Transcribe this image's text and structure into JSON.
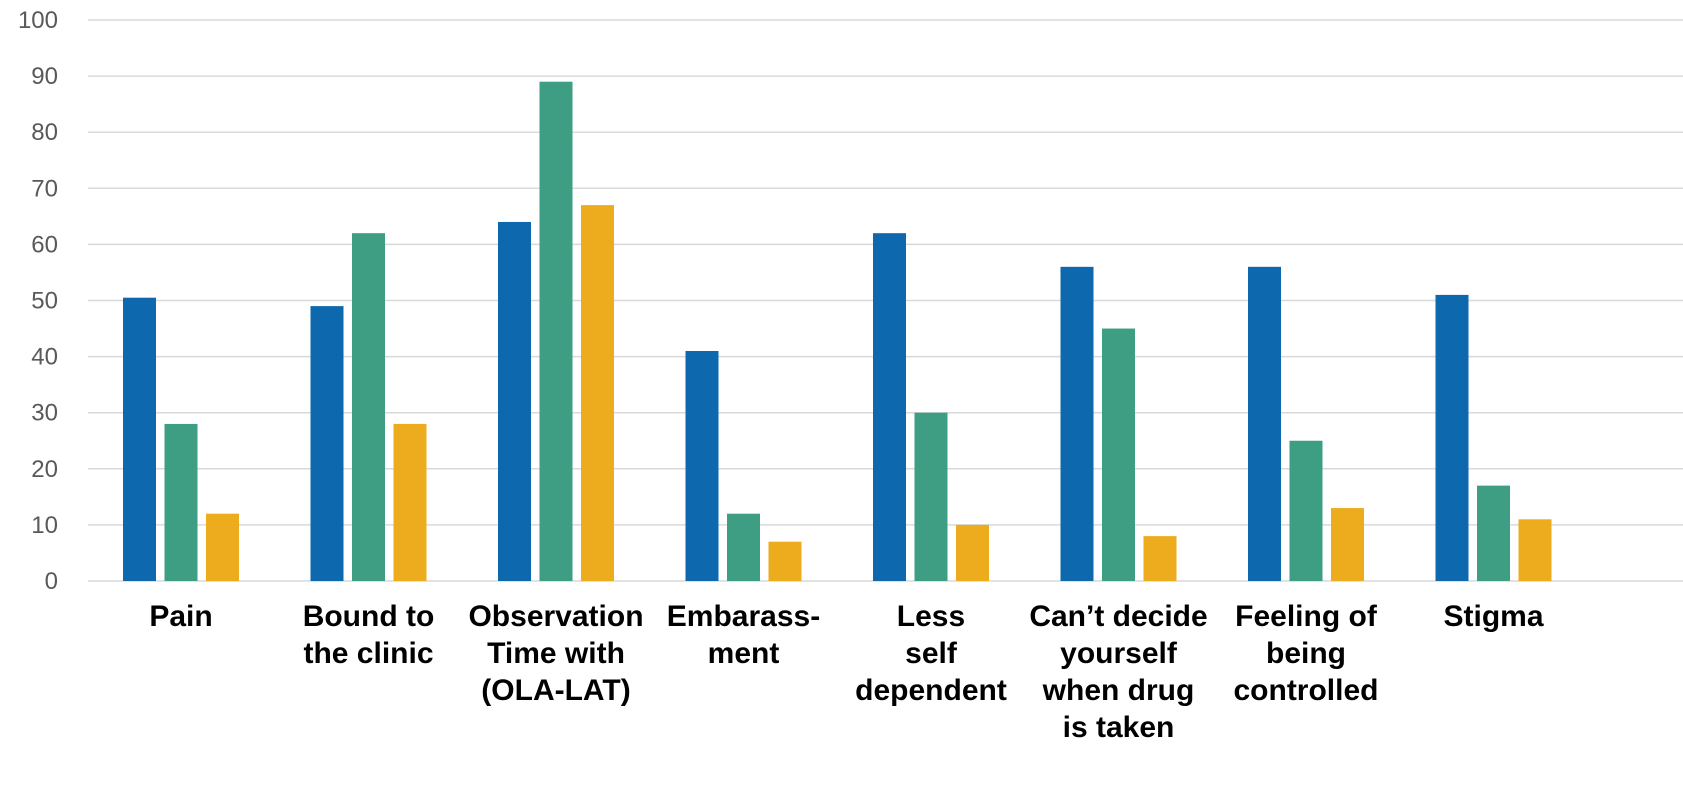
{
  "chart_data": {
    "type": "bar",
    "title": "",
    "xlabel": "",
    "ylabel": "",
    "ylim": [
      0,
      100
    ],
    "yticks": [
      0,
      10,
      20,
      30,
      40,
      50,
      60,
      70,
      80,
      90,
      100
    ],
    "grid": true,
    "legend": "none",
    "categories": [
      [
        "Pain"
      ],
      [
        "Bound to",
        "the clinic"
      ],
      [
        "Observation",
        "Time with",
        "(OLA-LAT)"
      ],
      [
        "Embarass-",
        "ment"
      ],
      [
        "Less",
        "self",
        "dependent"
      ],
      [
        "Can’t decide",
        "yourself",
        "when drug",
        "is taken"
      ],
      [
        "Feeling of",
        "being",
        "controlled"
      ],
      [
        "Stigma"
      ]
    ],
    "series": [
      {
        "color": "#0e68ad",
        "values": [
          50.5,
          49,
          64,
          41,
          62,
          56,
          56,
          51
        ]
      },
      {
        "color": "#3e9e84",
        "values": [
          28,
          62,
          89,
          12,
          30,
          45,
          25,
          17
        ]
      },
      {
        "color": "#ecac1e",
        "values": [
          12,
          28,
          67,
          7,
          10,
          8,
          13,
          11
        ]
      }
    ]
  }
}
